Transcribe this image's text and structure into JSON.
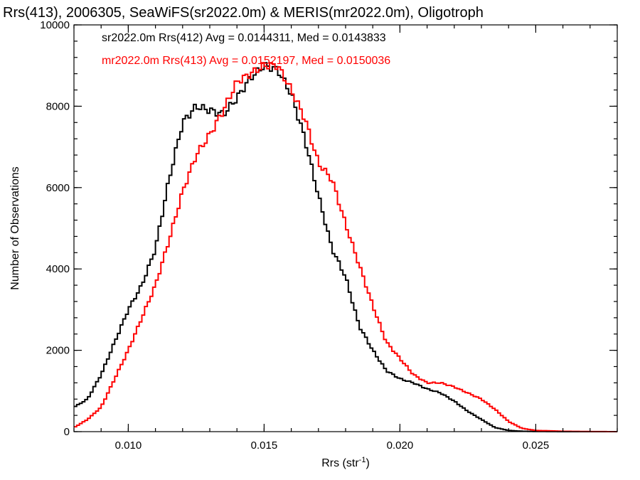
{
  "chart_data": {
    "type": "line",
    "title": "Rrs(413), 2006305, SeaWiFS(sr2022.0m) & MERIS(mr2022.0m), Oligotroph",
    "xlabel_main": "Rrs (str",
    "xlabel_sup": "-1",
    "xlabel_end": ")",
    "ylabel": "Number of Observations",
    "xlim": [
      0.008,
      0.028
    ],
    "ylim": [
      0,
      10000
    ],
    "xticks": [
      0.01,
      0.015,
      0.02,
      0.025
    ],
    "xtick_labels": [
      "0.010",
      "0.015",
      "0.020",
      "0.025"
    ],
    "yticks": [
      0,
      2000,
      4000,
      6000,
      8000,
      10000
    ],
    "ytick_labels": [
      "0",
      "2000",
      "4000",
      "6000",
      "8000",
      "10000"
    ],
    "x_minor_step": 0.001,
    "y_minor_step": 400,
    "grid": false,
    "series": [
      {
        "name": "sr2022.0m Rrs(412) Avg = 0.0144311, Med = 0.0143833",
        "color": "#000000",
        "points": [
          [
            0.008,
            600
          ],
          [
            0.0085,
            800
          ],
          [
            0.009,
            1400
          ],
          [
            0.0095,
            2200
          ],
          [
            0.01,
            3000
          ],
          [
            0.0105,
            3600
          ],
          [
            0.011,
            4500
          ],
          [
            0.0115,
            6200
          ],
          [
            0.012,
            7600
          ],
          [
            0.0125,
            8000
          ],
          [
            0.013,
            7900
          ],
          [
            0.0135,
            7800
          ],
          [
            0.014,
            8200
          ],
          [
            0.0145,
            8700
          ],
          [
            0.015,
            9000
          ],
          [
            0.0155,
            8900
          ],
          [
            0.016,
            8300
          ],
          [
            0.0165,
            7200
          ],
          [
            0.017,
            5800
          ],
          [
            0.0175,
            4500
          ],
          [
            0.018,
            3800
          ],
          [
            0.0185,
            2600
          ],
          [
            0.019,
            2000
          ],
          [
            0.0195,
            1500
          ],
          [
            0.02,
            1300
          ],
          [
            0.0205,
            1200
          ],
          [
            0.021,
            1050
          ],
          [
            0.0215,
            950
          ],
          [
            0.022,
            750
          ],
          [
            0.0225,
            500
          ],
          [
            0.023,
            300
          ],
          [
            0.0235,
            100
          ],
          [
            0.024,
            30
          ],
          [
            0.0245,
            10
          ],
          [
            0.025,
            5
          ],
          [
            0.026,
            0
          ],
          [
            0.028,
            0
          ]
        ]
      },
      {
        "name": "mr2022.0m Rrs(413) Avg = 0.0152197, Med = 0.0150036",
        "color": "#ff0000",
        "points": [
          [
            0.008,
            100
          ],
          [
            0.0085,
            300
          ],
          [
            0.009,
            600
          ],
          [
            0.0095,
            1300
          ],
          [
            0.01,
            2000
          ],
          [
            0.0105,
            2800
          ],
          [
            0.011,
            3600
          ],
          [
            0.0115,
            4700
          ],
          [
            0.012,
            5900
          ],
          [
            0.0125,
            6800
          ],
          [
            0.013,
            7300
          ],
          [
            0.0135,
            7900
          ],
          [
            0.014,
            8600
          ],
          [
            0.0145,
            8800
          ],
          [
            0.015,
            9000
          ],
          [
            0.0155,
            9000
          ],
          [
            0.016,
            8400
          ],
          [
            0.0165,
            7700
          ],
          [
            0.017,
            6600
          ],
          [
            0.0175,
            6200
          ],
          [
            0.018,
            5100
          ],
          [
            0.0185,
            4100
          ],
          [
            0.019,
            3100
          ],
          [
            0.0195,
            2200
          ],
          [
            0.02,
            1800
          ],
          [
            0.0205,
            1400
          ],
          [
            0.021,
            1200
          ],
          [
            0.0215,
            1200
          ],
          [
            0.022,
            1100
          ],
          [
            0.0225,
            950
          ],
          [
            0.023,
            800
          ],
          [
            0.0235,
            550
          ],
          [
            0.024,
            250
          ],
          [
            0.0245,
            80
          ],
          [
            0.025,
            30
          ],
          [
            0.026,
            10
          ],
          [
            0.027,
            3
          ],
          [
            0.028,
            0
          ]
        ]
      }
    ]
  }
}
